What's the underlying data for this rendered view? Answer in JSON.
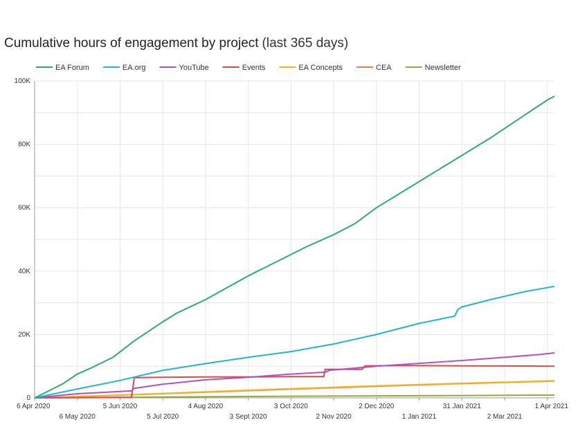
{
  "chart_data": {
    "type": "line",
    "title": "Cumulative hours of engagement by project",
    "subtitle": "(last 365 days)",
    "xlabel": "",
    "ylabel": "",
    "x_domain": [
      "6 Apr 2020",
      "1 Apr 2021"
    ],
    "x_ticks": [
      {
        "label": "6 Apr 2020",
        "day": 0,
        "row": 0
      },
      {
        "label": "6 May 2020",
        "day": 30,
        "row": 1
      },
      {
        "label": "5 Jun 2020",
        "day": 60,
        "row": 0
      },
      {
        "label": "5 Jul 2020",
        "day": 90,
        "row": 1
      },
      {
        "label": "4 Aug 2020",
        "day": 120,
        "row": 0
      },
      {
        "label": "3 Sept 2020",
        "day": 150,
        "row": 1
      },
      {
        "label": "3 Oct 2020",
        "day": 180,
        "row": 0
      },
      {
        "label": "2 Nov 2020",
        "day": 210,
        "row": 1
      },
      {
        "label": "2 Dec 2020",
        "day": 240,
        "row": 0
      },
      {
        "label": "1 Jan 2021",
        "day": 270,
        "row": 1
      },
      {
        "label": "31 Jan 2021",
        "day": 300,
        "row": 0
      },
      {
        "label": "2 Mar 2021",
        "day": 330,
        "row": 1
      },
      {
        "label": "1 Apr 2021",
        "day": 360,
        "row": 0
      }
    ],
    "y_ticks": [
      {
        "label": "0",
        "value": 0
      },
      {
        "label": "20K",
        "value": 20000
      },
      {
        "label": "40K",
        "value": 40000
      },
      {
        "label": "60K",
        "value": 60000
      },
      {
        "label": "80K",
        "value": 80000
      },
      {
        "label": "100K",
        "value": 100000
      }
    ],
    "ylim": [
      0,
      100000
    ],
    "xlim_days": [
      0,
      365
    ],
    "legend_position": "top",
    "series": [
      {
        "name": "EA Forum",
        "color": "#2eab6e",
        "points": [
          [
            0,
            0
          ],
          [
            10,
            2200
          ],
          [
            20,
            4500
          ],
          [
            25,
            6000
          ],
          [
            30,
            7500
          ],
          [
            40,
            9500
          ],
          [
            55,
            12800
          ],
          [
            70,
            18000
          ],
          [
            90,
            24000
          ],
          [
            100,
            26800
          ],
          [
            120,
            31000
          ],
          [
            150,
            38500
          ],
          [
            170,
            43000
          ],
          [
            190,
            47500
          ],
          [
            210,
            51500
          ],
          [
            225,
            55000
          ],
          [
            240,
            60000
          ],
          [
            260,
            65500
          ],
          [
            280,
            71000
          ],
          [
            300,
            76500
          ],
          [
            320,
            82000
          ],
          [
            345,
            89500
          ],
          [
            360,
            94000
          ],
          [
            365,
            95200
          ]
        ]
      },
      {
        "name": "EA.org",
        "color": "#21b5c9",
        "points": [
          [
            0,
            0
          ],
          [
            30,
            2800
          ],
          [
            60,
            5500
          ],
          [
            90,
            8700
          ],
          [
            120,
            10800
          ],
          [
            150,
            12800
          ],
          [
            180,
            14600
          ],
          [
            210,
            17000
          ],
          [
            240,
            20000
          ],
          [
            270,
            23500
          ],
          [
            295,
            25800
          ],
          [
            297,
            27800
          ],
          [
            300,
            28700
          ],
          [
            320,
            31000
          ],
          [
            345,
            33600
          ],
          [
            365,
            35200
          ]
        ]
      },
      {
        "name": "YouTube",
        "color": "#b050c8",
        "points": [
          [
            0,
            0
          ],
          [
            30,
            1300
          ],
          [
            68,
            2200
          ],
          [
            70,
            3000
          ],
          [
            90,
            4300
          ],
          [
            120,
            5700
          ],
          [
            150,
            6500
          ],
          [
            180,
            7500
          ],
          [
            204,
            8100
          ],
          [
            207,
            8700
          ],
          [
            240,
            10000
          ],
          [
            270,
            10900
          ],
          [
            300,
            11800
          ],
          [
            330,
            12800
          ],
          [
            355,
            13700
          ],
          [
            365,
            14200
          ]
        ]
      },
      {
        "name": "Events",
        "color": "#d84a46",
        "points": [
          [
            0,
            0
          ],
          [
            68,
            150
          ],
          [
            70,
            6400
          ],
          [
            90,
            6500
          ],
          [
            120,
            6600
          ],
          [
            150,
            6600
          ],
          [
            180,
            6700
          ],
          [
            203,
            6700
          ],
          [
            204,
            9000
          ],
          [
            230,
            9000
          ],
          [
            232,
            10100
          ],
          [
            260,
            10200
          ],
          [
            300,
            10100
          ],
          [
            365,
            10000
          ]
        ]
      },
      {
        "name": "EA Concepts",
        "color": "#f3b51b",
        "points": [
          [
            0,
            0
          ],
          [
            60,
            900
          ],
          [
            120,
            1900
          ],
          [
            180,
            2900
          ],
          [
            240,
            3800
          ],
          [
            300,
            4600
          ],
          [
            365,
            5400
          ]
        ]
      },
      {
        "name": "CEA",
        "color": "#f07a50",
        "points": [
          [
            0,
            0
          ],
          [
            60,
            850
          ],
          [
            120,
            1800
          ],
          [
            180,
            2750
          ],
          [
            240,
            3650
          ],
          [
            300,
            4500
          ],
          [
            365,
            5300
          ]
        ]
      },
      {
        "name": "Newsletter",
        "color": "#94a83b",
        "points": [
          [
            0,
            0
          ],
          [
            60,
            180
          ],
          [
            120,
            360
          ],
          [
            180,
            520
          ],
          [
            240,
            640
          ],
          [
            300,
            740
          ],
          [
            365,
            880
          ]
        ]
      }
    ]
  }
}
